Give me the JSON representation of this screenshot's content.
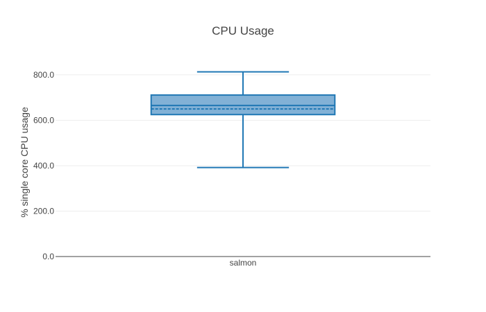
{
  "chart_data": {
    "type": "box",
    "title": "CPU Usage",
    "xlabel": "",
    "ylabel": "% single core CPU usage",
    "categories": [
      "salmon"
    ],
    "ylim": [
      0,
      870
    ],
    "yticks": [
      0,
      200,
      400,
      600,
      800
    ],
    "ytick_labels": [
      "0.0",
      "200.0",
      "400.0",
      "600.0",
      "800.0"
    ],
    "grid": true,
    "boxes": [
      {
        "category": "salmon",
        "min": 392,
        "q1": 625,
        "median": 665,
        "q3": 711,
        "max": 813,
        "mean": 650,
        "color": "#1f77b4",
        "fill": "#82b1d6"
      }
    ]
  }
}
